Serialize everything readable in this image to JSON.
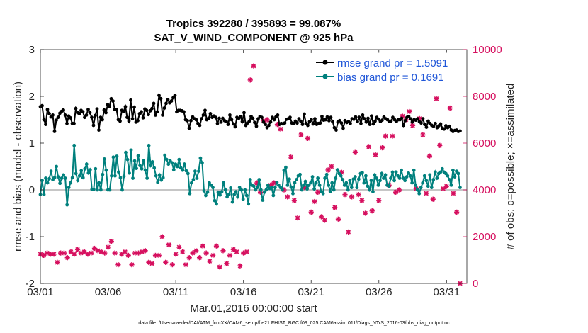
{
  "chart_data": {
    "type": "line",
    "title": "Tropics 392280 / 395893 = 99.087%",
    "subtitle": "SAT_V_WIND_COMPONENT @ 925 hPa",
    "xlabel": "Mar.01,2016 00:00:00 start",
    "ylabel": "rmse and bias (model - observation)",
    "y2label": "# of obs: o=possible; ×=assimilated",
    "footer": "data file: /Users/raeder/DAI/ATM_forcXX/CAM6_setup/f.e21.FHIST_BGC.f09_025.CAM6assim.011/Diags_NTrS_2016-03/obs_diag_output.nc",
    "xlim": [
      0,
      31.5
    ],
    "ylim": [
      -2,
      3
    ],
    "y2lim": [
      0,
      10000
    ],
    "x_tick_positions": [
      0,
      5,
      10,
      15,
      20,
      25,
      30
    ],
    "x_tick_labels": [
      "03/01",
      "03/06",
      "03/11",
      "03/16",
      "03/21",
      "03/26",
      "03/31"
    ],
    "y_ticks": [
      -2,
      -1,
      0,
      1,
      2,
      3
    ],
    "y2_ticks": [
      0,
      2000,
      4000,
      6000,
      8000,
      10000
    ],
    "legend_position": "top-right",
    "colors": {
      "rmse": "#000000",
      "bias": "#00807d",
      "obs": "#d6105f",
      "zero_line": "#b3b3b3"
    },
    "series": [
      {
        "name": "rmse grand pr = 1.5091",
        "axis": "left",
        "values": [
          1.78,
          1.8,
          1.5,
          1.4,
          1.72,
          1.63,
          1.56,
          1.6,
          1.25,
          1.49,
          1.55,
          1.64,
          1.68,
          1.71,
          1.6,
          1.42,
          1.58,
          1.54,
          1.42,
          1.42,
          1.74,
          1.65,
          1.63,
          1.7,
          1.67,
          1.55,
          1.6,
          1.72,
          1.65,
          1.55,
          1.38,
          1.59,
          1.73,
          1.28,
          1.55,
          1.5,
          1.71,
          1.65,
          1.82,
          1.78,
          1.95,
          1.9,
          1.72,
          1.72,
          1.5,
          1.47,
          1.7,
          1.68,
          1.78,
          1.55,
          1.47,
          1.92,
          1.52,
          1.77,
          1.45,
          1.48,
          1.63,
          1.67,
          1.54,
          1.73,
          1.7,
          1.61,
          1.69,
          1.74,
          1.85,
          1.6,
          1.67,
          2.02,
          1.95,
          1.6,
          1.75,
          1.85,
          1.93,
          1.86,
          1.9,
          1.97,
          2.02,
          1.67,
          1.7,
          1.7,
          1.69,
          1.67,
          1.5,
          1.48,
          1.32,
          1.48,
          1.56,
          1.52,
          1.5,
          1.42,
          1.38,
          1.52,
          1.6,
          1.7,
          1.5,
          1.53,
          1.63,
          1.55,
          1.58,
          1.55,
          1.42,
          1.53,
          1.45,
          1.53,
          1.48,
          1.46,
          1.4,
          1.6,
          1.5,
          1.41,
          1.35,
          1.55,
          1.53,
          1.57,
          1.46,
          1.65,
          1.38,
          1.43,
          1.47,
          1.57,
          1.53,
          1.44,
          1.36,
          1.52,
          1.57,
          1.55,
          1.45,
          1.4,
          1.33,
          1.38,
          1.45,
          1.55,
          1.5,
          1.56,
          1.6,
          1.4,
          1.42,
          1.41,
          1.43,
          1.51,
          1.52,
          1.55,
          1.43,
          1.42,
          1.47,
          1.43,
          1.52,
          1.47,
          1.4,
          1.62,
          1.42,
          1.38,
          1.46,
          1.5,
          1.41,
          1.52,
          1.4,
          1.42,
          1.43,
          1.57,
          1.49,
          1.5,
          1.56,
          1.48,
          1.55,
          1.46,
          1.33,
          1.28,
          1.45,
          1.48,
          1.43,
          1.32,
          1.48,
          1.44,
          1.46,
          1.42,
          1.52,
          1.51,
          1.56,
          1.46,
          1.55,
          1.42,
          1.6,
          1.52,
          1.45,
          1.53,
          1.4,
          1.58,
          1.41,
          1.47,
          1.55,
          1.51,
          1.46,
          1.49,
          1.56,
          1.52,
          1.5,
          1.46,
          1.47,
          1.55,
          1.5,
          1.46,
          1.5,
          1.5,
          1.53,
          1.38,
          1.48,
          1.55,
          1.57,
          1.52,
          1.45,
          1.5,
          1.49,
          1.52,
          1.46,
          1.43,
          1.52,
          1.4,
          1.34,
          1.47,
          1.42,
          1.38,
          1.36,
          1.42,
          1.33,
          1.37,
          1.41,
          1.32,
          1.3,
          1.37,
          1.33,
          1.36,
          1.28,
          1.25,
          1.27,
          1.28,
          1.25,
          1.26
        ]
      },
      {
        "name": "bias grand pr = 0.1691",
        "axis": "left",
        "values": [
          -0.1,
          0.2,
          -0.1,
          0.25,
          0.15,
          0.24,
          0.4,
          0.22,
          0.26,
          0.5,
          0.28,
          0.14,
          0.25,
          0.32,
          0.25,
          -0.32,
          0.05,
          0.15,
          0.26,
          0.95,
          0.35,
          0.2,
          0.3,
          0.41,
          0.26,
          0.45,
          0.55,
          0.36,
          0.43,
          0.01,
          0.01,
          0.45,
          0.0,
          0.15,
          0.0,
          0.33,
          0.66,
          0.42,
          0.0,
          0.0,
          0.3,
          0.7,
          0.3,
          0.72,
          0.38,
          0.26,
          0.0,
          0.29,
          0.8,
          0.65,
          0.36,
          0.85,
          0.25,
          0.62,
          0.46,
          0.73,
          0.52,
          0.45,
          0.62,
          0.42,
          0.25,
          0.95,
          0.52,
          0.6,
          0.47,
          0.3,
          0.16,
          0.32,
          0.21,
          0.26,
          0.74,
          0.65,
          0.55,
          0.62,
          0.58,
          0.43,
          0.55,
          0.5,
          0.65,
          0.47,
          0.42,
          0.55,
          0.41,
          0.35,
          -0.08,
          0.15,
          0.22,
          0.4,
          0.25,
          0.4,
          0.68,
          0.58,
          -0.02,
          -0.12,
          -0.05,
          0.15,
          0.1,
          0.05,
          -0.23,
          -0.3,
          -0.05,
          -0.11,
          -0.04,
          0.15,
          0.0,
          -0.15,
          -0.1,
          0.04,
          -0.26,
          -0.1,
          -0.04,
          -0.15,
          0.05,
          0.0,
          -0.2,
          0.0,
          -0.12,
          -0.3,
          0.22,
          0.1,
          0.08,
          0.0,
          0.05,
          0.22,
          0.0,
          -0.22,
          -0.05,
          0.0,
          0.1,
          0.03,
          0.05,
          -0.12,
          0.05,
          0.16,
          0.1,
          0.05,
          0.0,
          0.42,
          0.48,
          0.1,
          0.23,
          0.06,
          -0.08,
          0.15,
          0.22,
          0.3,
          0.33,
          0.0,
          0.1,
          0.18,
          0.02,
          0.1,
          0.15,
          0.28,
          0.02,
          0.15,
          0.25,
          0.1,
          -0.04,
          -0.08,
          0.25,
          0.33,
          0.1,
          -0.04,
          0.15,
          0.0,
          0.25,
          0.43,
          0.35,
          0.3,
          0.22,
          0.1,
          0.15,
          0.0,
          0.2,
          0.05,
          0.23,
          0.28,
          0.05,
          0.23,
          0.35,
          0.37,
          0.15,
          0.3,
          0.08,
          0.0,
          0.2,
          -0.04,
          0.32,
          0.25,
          0.1,
          0.2,
          0.35,
          0.25,
          0.32,
          0.1,
          0.08,
          0.25,
          0.38,
          0.2,
          0.38,
          0.3,
          0.25,
          0.42,
          0.25,
          0.2,
          0.28,
          0.36,
          0.3,
          0.15,
          0.42,
          0.1,
          0.0,
          -0.08,
          0.05,
          0.15,
          0.3,
          0.2,
          0.08,
          0.32,
          0.05,
          0.22,
          0.38,
          0.25,
          0.35,
          0.38,
          0.45,
          0.38,
          0.35,
          0.3,
          0.22,
          0.1,
          0.42,
          0.28,
          0.4,
          0.35,
          0.05
        ]
      }
    ],
    "obs_series": {
      "name": "# of obs",
      "axis": "right",
      "points": [
        [
          0,
          1250
        ],
        [
          0.25,
          1200
        ],
        [
          0.5,
          1300
        ],
        [
          0.75,
          1250
        ],
        [
          1.0,
          1250
        ],
        [
          1.25,
          900
        ],
        [
          1.5,
          1300
        ],
        [
          1.75,
          1300
        ],
        [
          2.0,
          1100
        ],
        [
          2.25,
          1350
        ],
        [
          2.5,
          1250
        ],
        [
          2.75,
          1450
        ],
        [
          3.0,
          1300
        ],
        [
          3.25,
          1350
        ],
        [
          3.5,
          1250
        ],
        [
          3.75,
          1300
        ],
        [
          4.0,
          1500
        ],
        [
          4.25,
          1400
        ],
        [
          4.5,
          1350
        ],
        [
          4.75,
          1300
        ],
        [
          5.0,
          1550
        ],
        [
          5.25,
          1800
        ],
        [
          5.5,
          1300
        ],
        [
          5.75,
          800
        ],
        [
          6.0,
          1250
        ],
        [
          6.25,
          1350
        ],
        [
          6.5,
          1200
        ],
        [
          6.75,
          800
        ],
        [
          7.0,
          1300
        ],
        [
          7.25,
          1300
        ],
        [
          7.5,
          1350
        ],
        [
          7.75,
          1400
        ],
        [
          8.0,
          900
        ],
        [
          8.25,
          850
        ],
        [
          8.5,
          1200
        ],
        [
          8.75,
          1200
        ],
        [
          9.0,
          2000
        ],
        [
          9.25,
          900
        ],
        [
          9.5,
          1650
        ],
        [
          9.75,
          800
        ],
        [
          10.0,
          1250
        ],
        [
          10.25,
          1550
        ],
        [
          10.5,
          1350
        ],
        [
          10.75,
          800
        ],
        [
          11.0,
          1100
        ],
        [
          11.25,
          1300
        ],
        [
          11.5,
          1400
        ],
        [
          11.75,
          1100
        ],
        [
          12.0,
          1600
        ],
        [
          12.25,
          1300
        ],
        [
          12.5,
          950
        ],
        [
          12.75,
          1200
        ],
        [
          13.0,
          1600
        ],
        [
          13.25,
          700
        ],
        [
          13.5,
          1400
        ],
        [
          13.75,
          850
        ],
        [
          14.0,
          1200
        ],
        [
          14.25,
          1450
        ],
        [
          14.5,
          1350
        ],
        [
          14.75,
          750
        ],
        [
          15.0,
          1300
        ],
        [
          15.25,
          1350
        ],
        [
          15.5,
          8700
        ],
        [
          15.75,
          9300
        ],
        [
          16.0,
          4300
        ],
        [
          16.25,
          3900
        ],
        [
          16.5,
          6950
        ],
        [
          16.75,
          7000
        ],
        [
          17.0,
          4200
        ],
        [
          17.25,
          4300
        ],
        [
          17.5,
          6800
        ],
        [
          17.75,
          6600
        ],
        [
          18.0,
          4000
        ],
        [
          18.25,
          3700
        ],
        [
          18.5,
          5400
        ],
        [
          18.75,
          3550
        ],
        [
          19.0,
          2800
        ],
        [
          19.25,
          6350
        ],
        [
          19.5,
          4100
        ],
        [
          19.75,
          6200
        ],
        [
          20.0,
          3050
        ],
        [
          20.25,
          3500
        ],
        [
          20.5,
          3900
        ],
        [
          20.75,
          2850
        ],
        [
          21.0,
          2700
        ],
        [
          21.25,
          4850
        ],
        [
          21.5,
          5000
        ],
        [
          21.75,
          3250
        ],
        [
          22.0,
          2750
        ],
        [
          22.25,
          4750
        ],
        [
          22.5,
          3800
        ],
        [
          22.75,
          2200
        ],
        [
          23.0,
          3700
        ],
        [
          23.25,
          5600
        ],
        [
          23.5,
          3800
        ],
        [
          23.75,
          3550
        ],
        [
          24.0,
          3000
        ],
        [
          24.25,
          5850
        ],
        [
          24.5,
          3100
        ],
        [
          24.75,
          5500
        ],
        [
          25.0,
          3550
        ],
        [
          25.25,
          5800
        ],
        [
          25.5,
          6300
        ],
        [
          25.75,
          4200
        ],
        [
          26.0,
          6300
        ],
        [
          26.25,
          3900
        ],
        [
          26.5,
          4000
        ],
        [
          26.75,
          7150
        ],
        [
          27.0,
          7000
        ],
        [
          27.25,
          7350
        ],
        [
          27.5,
          6750
        ],
        [
          27.75,
          4050
        ],
        [
          28.0,
          7050
        ],
        [
          28.25,
          6350
        ],
        [
          28.5,
          3850
        ],
        [
          28.75,
          5450
        ],
        [
          29.0,
          3600
        ],
        [
          29.25,
          7900
        ],
        [
          29.5,
          5900
        ],
        [
          29.75,
          4050
        ],
        [
          30.0,
          4150
        ],
        [
          30.25,
          7500
        ],
        [
          30.5,
          3850
        ],
        [
          30.75,
          3050
        ],
        [
          31.0,
          0
        ]
      ]
    }
  }
}
